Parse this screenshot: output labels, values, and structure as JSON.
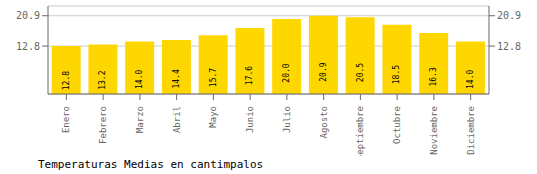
{
  "chart_data": {
    "type": "bar",
    "title": "Temperaturas Medias en cantimpalos",
    "categories": [
      "Enero",
      "Febrero",
      "Marzo",
      "Abril",
      "Mayo",
      "Junio",
      "Julio",
      "Agosto",
      "Septiembre",
      "Octubre",
      "Noviembre",
      "Diciembre"
    ],
    "values": [
      12.8,
      13.2,
      14.0,
      14.4,
      15.7,
      17.6,
      20.0,
      20.9,
      20.5,
      18.5,
      16.3,
      14.0
    ],
    "value_labels": [
      "12.8",
      "13.2",
      "14.0",
      "14.4",
      "15.7",
      "17.6",
      "20.0",
      "20.9",
      "20.5",
      "18.5",
      "16.3",
      "14.0"
    ],
    "color": "#FFD700",
    "ylim": [
      0,
      23.5
    ],
    "yticks": [
      12.8,
      20.9
    ],
    "y2lim": [
      0,
      23.5
    ],
    "y2ticks": [
      12.8,
      20.9
    ],
    "grid": true,
    "data_labels": true
  }
}
